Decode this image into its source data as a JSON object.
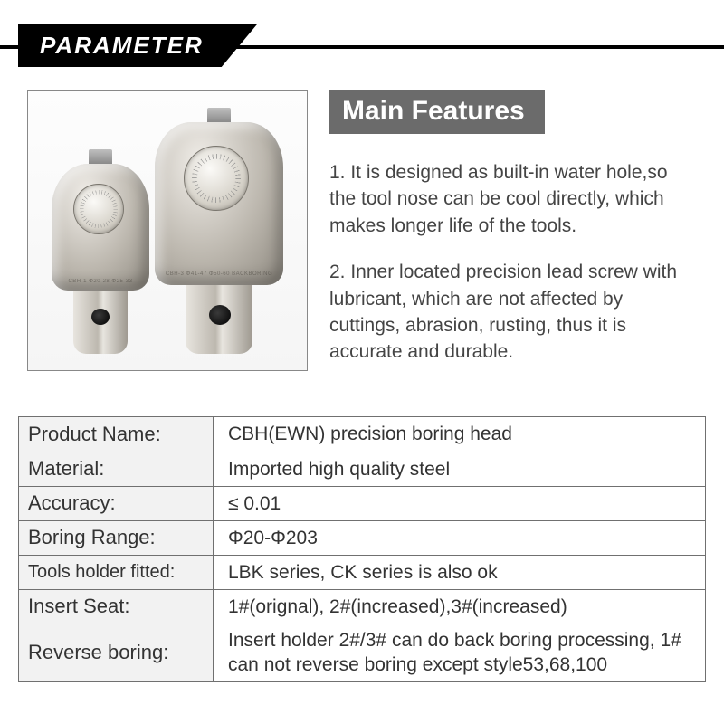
{
  "header": {
    "label": "PARAMETER"
  },
  "features": {
    "badge": "Main Features",
    "items": [
      "1. It is designed as built-in water hole,so the tool nose can be cool directly, which makes longer life of the tools.",
      "2. Inner located precision lead screw with lubricant, which are not affected by cuttings, abrasion, rusting, thus it is accurate and durable."
    ]
  },
  "product_illustration": {
    "tools": [
      {
        "size": "small",
        "dial_marks": true
      },
      {
        "size": "big",
        "dial_marks": true
      }
    ],
    "engraving_hint_small": "CBH-1  Φ20-28  Φ25-33",
    "engraving_hint_big": "CBH-3  Φ41-47  Φ50-60  BACKBORING"
  },
  "spec_table": {
    "rows": [
      {
        "label": "Product Name:",
        "value": "CBH(EWN) precision boring head"
      },
      {
        "label": "Material:",
        "value": "Imported high quality steel"
      },
      {
        "label": "Accuracy:",
        "value": "≤ 0.01"
      },
      {
        "label": "Boring Range:",
        "value": "Φ20-Φ203"
      },
      {
        "label": "Tools holder fitted:",
        "value": "LBK series, CK series is also ok"
      },
      {
        "label": "Insert Seat:",
        "value": "1#(orignal), 2#(increased),3#(increased)"
      },
      {
        "label": "Reverse boring:",
        "value": "Insert holder 2#/3# can do back boring processing, 1# can not reverse boring except style53,68,100"
      }
    ]
  },
  "colors": {
    "ribbon_bg": "#000000",
    "ribbon_text": "#ffffff",
    "badge_bg": "#6b6b6b",
    "badge_text": "#ffffff",
    "body_text": "#444444",
    "table_border": "#707070",
    "table_label_bg": "#f2f2f2"
  },
  "typography": {
    "ribbon_fontsize": 26,
    "badge_fontsize": 30,
    "feature_fontsize": 21,
    "table_fontsize": 22
  }
}
